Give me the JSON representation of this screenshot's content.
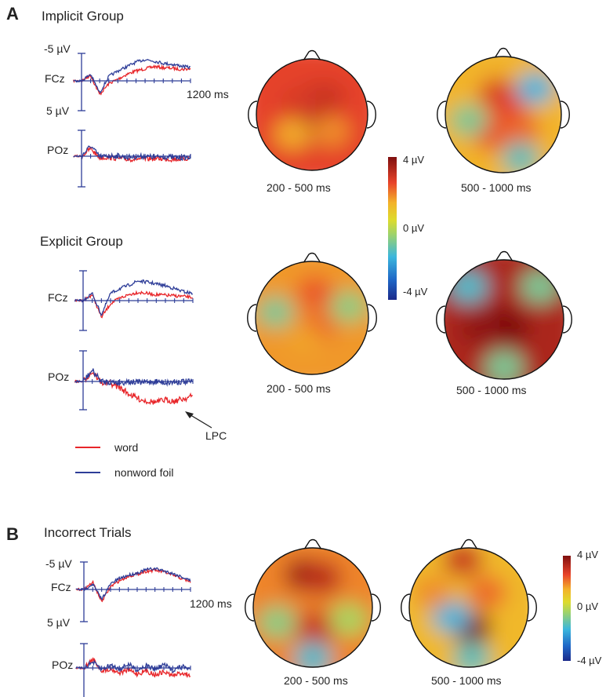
{
  "figure": {
    "panel_a": {
      "letter": "A",
      "implicit_title": "Implicit Group",
      "explicit_title": "Explicit Group"
    },
    "panel_b": {
      "letter": "B",
      "title": "Incorrect Trials"
    },
    "axis": {
      "neg": "-5 µV",
      "pos": "5 µV",
      "time": "1200 ms"
    },
    "channels": {
      "fcz": "FCz",
      "poz": "POz"
    },
    "windows": {
      "early": "200 - 500 ms",
      "late": "500 - 1000 ms"
    },
    "colorbar": {
      "max": "4 µV",
      "mid": "0 µV",
      "min": "-4 µV"
    },
    "legend": {
      "word": "word",
      "nonword": "nonword foil",
      "word_color": "#e8262a",
      "nonword_color": "#2e3d98"
    },
    "annotation": "LPC"
  },
  "chart_data": [
    {
      "type": "line",
      "panel": "A",
      "group": "Implicit Group",
      "channel": "FCz",
      "xlim": [
        -100,
        1200
      ],
      "ylim": [
        5,
        -5
      ],
      "x": [
        0,
        100,
        200,
        300,
        400,
        500,
        600,
        700,
        800,
        900,
        1000,
        1100,
        1200
      ],
      "series": [
        {
          "name": "word",
          "color": "#e8262a",
          "values": [
            0,
            -1,
            2.5,
            0.5,
            -0.3,
            -1.2,
            -1.8,
            -2.2,
            -2.6,
            -2.4,
            -2.3,
            -2.1,
            -2.2
          ]
        },
        {
          "name": "nonword foil",
          "color": "#2e3d98",
          "values": [
            0,
            -1.2,
            2.2,
            -0.8,
            -1.8,
            -2.6,
            -3.4,
            -3.9,
            -3.6,
            -3.2,
            -3.0,
            -2.7,
            -2.4
          ]
        }
      ]
    },
    {
      "type": "line",
      "panel": "A",
      "group": "Implicit Group",
      "channel": "POz",
      "xlim": [
        -100,
        1200
      ],
      "ylim": [
        5,
        -5
      ],
      "x": [
        0,
        100,
        200,
        300,
        400,
        500,
        600,
        700,
        800,
        900,
        1000,
        1100,
        1200
      ],
      "series": [
        {
          "name": "word",
          "color": "#e8262a",
          "values": [
            0,
            -1.5,
            0.3,
            0.2,
            0.4,
            0.6,
            0.5,
            0.6,
            0.4,
            0.5,
            0.6,
            0.5,
            0.4
          ]
        },
        {
          "name": "nonword foil",
          "color": "#2e3d98",
          "values": [
            0,
            -2.0,
            0.1,
            0.0,
            -0.1,
            0.2,
            0.1,
            0.0,
            0.2,
            0.1,
            0.2,
            0.3,
            0.2
          ]
        }
      ]
    },
    {
      "type": "line",
      "panel": "A",
      "group": "Explicit Group",
      "channel": "FCz",
      "xlim": [
        -100,
        1200
      ],
      "ylim": [
        5,
        -5
      ],
      "x": [
        0,
        100,
        200,
        300,
        400,
        500,
        600,
        700,
        800,
        900,
        1000,
        1100,
        1200
      ],
      "series": [
        {
          "name": "word",
          "color": "#e8262a",
          "values": [
            0,
            -1.0,
            2.8,
            0.5,
            -0.4,
            -1.0,
            -1.4,
            -1.2,
            -1.0,
            -0.9,
            -0.8,
            -0.7,
            -0.5
          ]
        },
        {
          "name": "nonword foil",
          "color": "#2e3d98",
          "values": [
            0,
            -1.2,
            2.4,
            -1.2,
            -2.0,
            -2.6,
            -3.3,
            -3.1,
            -2.8,
            -2.5,
            -2.0,
            -1.5,
            -1.2
          ]
        }
      ]
    },
    {
      "type": "line",
      "panel": "A",
      "group": "Explicit Group",
      "channel": "POz",
      "xlim": [
        -100,
        1200
      ],
      "ylim": [
        5,
        -5
      ],
      "x": [
        0,
        100,
        200,
        300,
        400,
        500,
        600,
        700,
        800,
        900,
        1000,
        1100,
        1200
      ],
      "series": [
        {
          "name": "word",
          "color": "#e8262a",
          "values": [
            0,
            -1.6,
            0.2,
            0.3,
            1.0,
            2.0,
            2.8,
            3.2,
            3.4,
            3.0,
            3.2,
            2.8,
            2.4
          ]
        },
        {
          "name": "nonword foil",
          "color": "#2e3d98",
          "values": [
            0,
            -1.8,
            0.0,
            0.1,
            0.2,
            0.0,
            0.2,
            0.1,
            0.0,
            0.2,
            0.1,
            0.0,
            0.1
          ]
        }
      ]
    },
    {
      "type": "line",
      "panel": "B",
      "group": "Incorrect Trials",
      "channel": "FCz",
      "xlim": [
        -100,
        1200
      ],
      "ylim": [
        5,
        -5
      ],
      "x": [
        0,
        100,
        200,
        300,
        400,
        500,
        600,
        700,
        800,
        900,
        1000,
        1100,
        1200
      ],
      "series": [
        {
          "name": "word",
          "color": "#e8262a",
          "values": [
            0,
            -1.3,
            2.2,
            -0.5,
            -1.6,
            -2.4,
            -2.8,
            -3.3,
            -3.5,
            -3.2,
            -2.6,
            -2.0,
            -1.4
          ]
        },
        {
          "name": "nonword foil",
          "color": "#2e3d98",
          "values": [
            0,
            -1.0,
            1.8,
            -1.0,
            -2.0,
            -2.6,
            -3.0,
            -3.6,
            -3.8,
            -3.4,
            -2.9,
            -2.3,
            -1.6
          ]
        }
      ]
    },
    {
      "type": "line",
      "panel": "B",
      "group": "Incorrect Trials",
      "channel": "POz",
      "xlim": [
        -100,
        1200
      ],
      "ylim": [
        5,
        -5
      ],
      "x": [
        0,
        100,
        200,
        300,
        400,
        500,
        600,
        700,
        800,
        900,
        1000,
        1100,
        1200
      ],
      "series": [
        {
          "name": "word",
          "color": "#e8262a",
          "values": [
            0,
            -1.8,
            0.5,
            0.2,
            1.0,
            0.4,
            1.2,
            0.6,
            1.4,
            0.8,
            1.6,
            1.0,
            1.5
          ]
        },
        {
          "name": "nonword foil",
          "color": "#2e3d98",
          "values": [
            0,
            -1.2,
            0.3,
            -0.6,
            0.2,
            -0.8,
            0.4,
            -0.5,
            0.3,
            -0.7,
            0.5,
            -0.3,
            0.2
          ]
        }
      ]
    },
    {
      "type": "heatmap",
      "panel": "A",
      "group": "Implicit Group",
      "window": "200 - 500 ms",
      "colorbar_range": [
        -4,
        4
      ],
      "mean_uV": 2.6,
      "sources": [
        {
          "u": 0.0,
          "v": -0.25,
          "amp": 3.2
        },
        {
          "u": 0.25,
          "v": -0.3,
          "amp": 3.0
        },
        {
          "u": -0.25,
          "v": -0.2,
          "amp": 2.8
        },
        {
          "u": 0.05,
          "v": 0.25,
          "amp": 3.2
        },
        {
          "u": -0.35,
          "v": 0.35,
          "amp": 1.5
        },
        {
          "u": 0.35,
          "v": 0.3,
          "amp": 1.8
        }
      ]
    },
    {
      "type": "heatmap",
      "panel": "A",
      "group": "Implicit Group",
      "window": "500 - 1000 ms",
      "colorbar_range": [
        -4,
        4
      ],
      "mean_uV": 1.4,
      "sources": [
        {
          "u": -0.1,
          "v": -0.35,
          "amp": 2.8
        },
        {
          "u": 0.1,
          "v": -0.05,
          "amp": 2.6
        },
        {
          "u": -0.2,
          "v": 0.35,
          "amp": 2.4
        },
        {
          "u": 0.3,
          "v": 0.25,
          "amp": 2.2
        },
        {
          "u": 0.55,
          "v": -0.45,
          "amp": -1.6
        },
        {
          "u": 0.3,
          "v": 0.75,
          "amp": -1.2
        },
        {
          "u": -0.6,
          "v": 0.1,
          "amp": -0.8
        }
      ]
    },
    {
      "type": "heatmap",
      "panel": "A",
      "group": "Explicit Group",
      "window": "200 - 500 ms",
      "colorbar_range": [
        -4,
        4
      ],
      "mean_uV": 1.7,
      "sources": [
        {
          "u": 0.05,
          "v": -0.45,
          "amp": 2.4
        },
        {
          "u": 0.1,
          "v": 0.15,
          "amp": 2.2
        },
        {
          "u": -0.15,
          "v": 0.4,
          "amp": 1.6
        },
        {
          "u": -0.65,
          "v": -0.1,
          "amp": -0.8
        },
        {
          "u": 0.65,
          "v": -0.2,
          "amp": -0.6
        }
      ]
    },
    {
      "type": "heatmap",
      "panel": "A",
      "group": "Explicit Group",
      "window": "500 - 1000 ms",
      "colorbar_range": [
        -4,
        4
      ],
      "mean_uV": 3.4,
      "sources": [
        {
          "u": -0.05,
          "v": 0.05,
          "amp": 4.0
        },
        {
          "u": 0.1,
          "v": 0.15,
          "amp": 4.2
        },
        {
          "u": -0.4,
          "v": 0.15,
          "amp": 3.8
        },
        {
          "u": -0.6,
          "v": -0.55,
          "amp": -1.4
        },
        {
          "u": 0.6,
          "v": -0.55,
          "amp": -0.8
        },
        {
          "u": 0.0,
          "v": 0.8,
          "amp": -0.8
        }
      ]
    },
    {
      "type": "heatmap",
      "panel": "B",
      "group": "Incorrect Trials",
      "window": "200 - 500 ms",
      "colorbar_range": [
        -4,
        4
      ],
      "mean_uV": 1.9,
      "sources": [
        {
          "u": -0.15,
          "v": -0.55,
          "amp": 3.6
        },
        {
          "u": 0.15,
          "v": -0.5,
          "amp": 3.2
        },
        {
          "u": 0.05,
          "v": 0.35,
          "amp": 3.0
        },
        {
          "u": -0.6,
          "v": 0.25,
          "amp": -0.6
        },
        {
          "u": 0.0,
          "v": 0.85,
          "amp": -1.4
        },
        {
          "u": 0.6,
          "v": 0.2,
          "amp": -0.2
        }
      ]
    },
    {
      "type": "heatmap",
      "panel": "B",
      "group": "Incorrect Trials",
      "window": "500 - 1000 ms",
      "colorbar_range": [
        -4,
        4
      ],
      "mean_uV": 1.3,
      "sources": [
        {
          "u": 0.05,
          "v": 0.35,
          "amp": 4.2
        },
        {
          "u": -0.1,
          "v": -0.8,
          "amp": 3.0
        },
        {
          "u": 0.3,
          "v": -0.25,
          "amp": 2.2
        },
        {
          "u": -0.3,
          "v": 0.15,
          "amp": -1.6
        },
        {
          "u": 0.05,
          "v": 0.85,
          "amp": -1.2
        },
        {
          "u": -0.6,
          "v": -0.25,
          "amp": 1.8
        }
      ]
    }
  ]
}
